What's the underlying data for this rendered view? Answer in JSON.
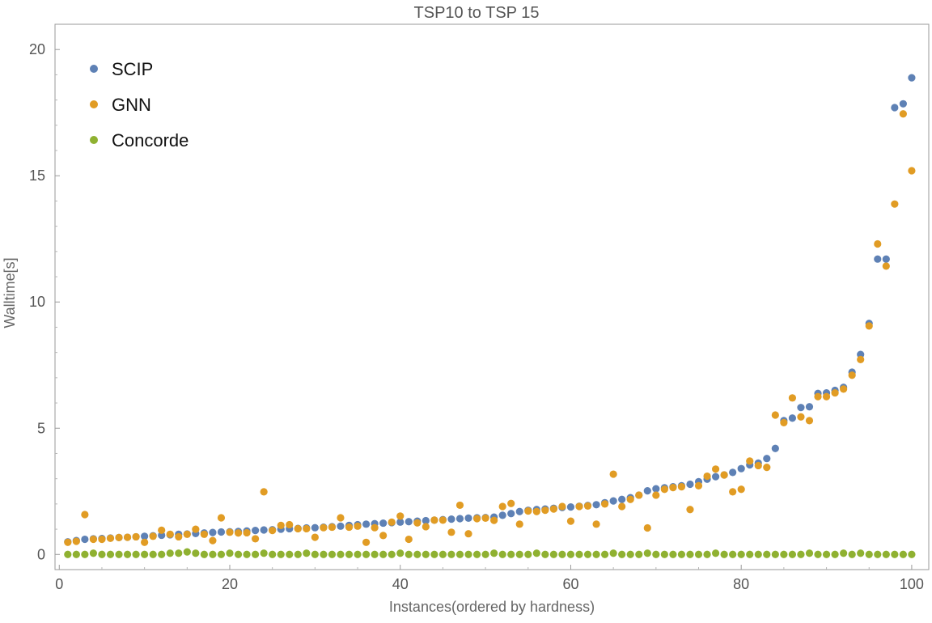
{
  "chart_data": {
    "type": "scatter",
    "title": "TSP10 to TSP 15",
    "xlabel": "Instances(ordered by hardness)",
    "ylabel": "Walltime[s]",
    "xlim": [
      -0.5,
      102
    ],
    "ylim": [
      -0.6,
      21
    ],
    "xticks": [
      0,
      20,
      40,
      60,
      80,
      100
    ],
    "yticks": [
      0,
      5,
      10,
      15,
      20
    ],
    "grid": false,
    "legend_position": "top-left",
    "x": [
      1,
      2,
      3,
      4,
      5,
      6,
      7,
      8,
      9,
      10,
      11,
      12,
      13,
      14,
      15,
      16,
      17,
      18,
      19,
      20,
      21,
      22,
      23,
      24,
      25,
      26,
      27,
      28,
      29,
      30,
      31,
      32,
      33,
      34,
      35,
      36,
      37,
      38,
      39,
      40,
      41,
      42,
      43,
      44,
      45,
      46,
      47,
      48,
      49,
      50,
      51,
      52,
      53,
      54,
      55,
      56,
      57,
      58,
      59,
      60,
      61,
      62,
      63,
      64,
      65,
      66,
      67,
      68,
      69,
      70,
      71,
      72,
      73,
      74,
      75,
      76,
      77,
      78,
      79,
      80,
      81,
      82,
      83,
      84,
      85,
      86,
      87,
      88,
      89,
      90,
      91,
      92,
      93,
      94,
      95,
      96,
      97,
      98,
      99,
      100
    ],
    "series": [
      {
        "name": "SCIP",
        "color": "#5E81B5",
        "values": [
          0.5,
          0.55,
          0.6,
          0.62,
          0.63,
          0.65,
          0.67,
          0.68,
          0.7,
          0.72,
          0.74,
          0.76,
          0.78,
          0.8,
          0.81,
          0.83,
          0.85,
          0.87,
          0.89,
          0.9,
          0.91,
          0.93,
          0.95,
          0.97,
          0.98,
          1.0,
          1.02,
          1.03,
          1.05,
          1.06,
          1.08,
          1.1,
          1.12,
          1.15,
          1.18,
          1.2,
          1.22,
          1.24,
          1.26,
          1.28,
          1.3,
          1.32,
          1.34,
          1.36,
          1.38,
          1.4,
          1.42,
          1.44,
          1.45,
          1.46,
          1.48,
          1.55,
          1.62,
          1.7,
          1.75,
          1.78,
          1.8,
          1.83,
          1.86,
          1.88,
          1.91,
          1.94,
          1.97,
          2.05,
          2.12,
          2.18,
          2.25,
          2.35,
          2.52,
          2.6,
          2.64,
          2.68,
          2.72,
          2.78,
          2.88,
          2.98,
          3.08,
          3.15,
          3.25,
          3.4,
          3.55,
          3.62,
          3.8,
          4.2,
          5.3,
          5.4,
          5.82,
          5.85,
          6.38,
          6.4,
          6.5,
          6.62,
          7.22,
          7.92,
          9.15,
          11.7,
          11.7,
          17.7,
          17.85,
          18.88
        ]
      },
      {
        "name": "GNN",
        "color": "#E19C24",
        "values": [
          0.48,
          0.52,
          1.58,
          0.6,
          0.6,
          0.64,
          0.67,
          0.68,
          0.7,
          0.48,
          0.72,
          0.96,
          0.8,
          0.7,
          0.8,
          1.0,
          0.8,
          0.55,
          1.45,
          0.88,
          0.85,
          0.86,
          0.62,
          2.48,
          0.95,
          1.15,
          1.18,
          1.02,
          1.02,
          0.68,
          1.06,
          1.08,
          1.45,
          1.08,
          1.12,
          0.48,
          1.06,
          0.75,
          1.28,
          1.52,
          0.6,
          1.25,
          1.1,
          1.36,
          1.36,
          0.88,
          1.95,
          0.82,
          1.42,
          1.44,
          1.35,
          1.9,
          2.02,
          1.2,
          1.72,
          1.7,
          1.75,
          1.8,
          1.9,
          1.32,
          1.9,
          1.92,
          1.2,
          2.0,
          3.18,
          1.9,
          2.18,
          2.35,
          1.05,
          2.35,
          2.58,
          2.65,
          2.68,
          1.78,
          2.72,
          3.1,
          3.38,
          3.15,
          2.48,
          2.58,
          3.7,
          3.52,
          3.45,
          5.52,
          5.22,
          6.2,
          5.45,
          5.3,
          6.25,
          6.25,
          6.4,
          6.55,
          7.1,
          7.72,
          9.05,
          12.3,
          11.42,
          13.88,
          17.45,
          15.2
        ]
      },
      {
        "name": "Concorde",
        "color": "#8FB131",
        "values": [
          0.0,
          0.0,
          0.0,
          0.05,
          0.0,
          0.0,
          0.0,
          0.0,
          0.0,
          0.0,
          0.0,
          0.0,
          0.05,
          0.05,
          0.1,
          0.05,
          0.0,
          0.0,
          0.0,
          0.05,
          0.0,
          0.0,
          0.0,
          0.05,
          0.0,
          0.0,
          0.0,
          0.0,
          0.05,
          0.0,
          0.0,
          0.0,
          0.0,
          0.0,
          0.0,
          0.0,
          0.0,
          0.0,
          0.0,
          0.05,
          0.0,
          0.0,
          0.0,
          0.0,
          0.0,
          0.0,
          0.0,
          0.0,
          0.0,
          0.0,
          0.05,
          0.0,
          0.0,
          0.0,
          0.0,
          0.05,
          0.0,
          0.0,
          0.0,
          0.0,
          0.0,
          0.0,
          0.0,
          0.0,
          0.05,
          0.0,
          0.0,
          0.0,
          0.05,
          0.0,
          0.0,
          0.0,
          0.0,
          0.0,
          0.0,
          0.0,
          0.05,
          0.0,
          0.0,
          0.0,
          0.0,
          0.0,
          0.0,
          0.0,
          0.0,
          0.0,
          0.0,
          0.05,
          0.0,
          0.0,
          0.0,
          0.05,
          0.0,
          0.05,
          0.0,
          0.0,
          0.0,
          0.0,
          0.0,
          0.0
        ]
      }
    ]
  }
}
